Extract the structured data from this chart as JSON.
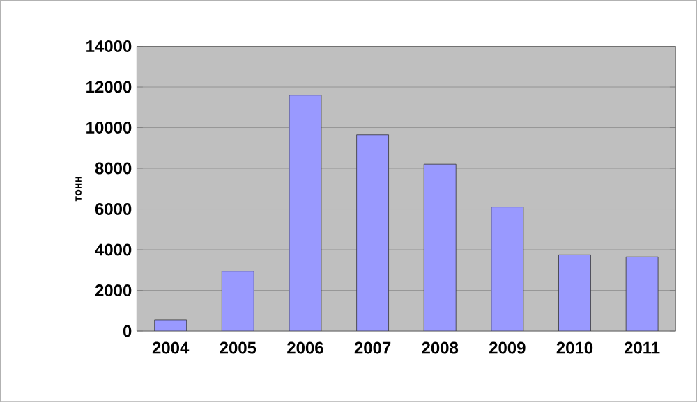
{
  "chart_data": {
    "type": "bar",
    "ylabel": "тонн",
    "categories": [
      "2004",
      "2005",
      "2006",
      "2007",
      "2008",
      "2009",
      "2010",
      "2011"
    ],
    "values": [
      550,
      2950,
      11600,
      9650,
      8200,
      6100,
      3750,
      3650
    ],
    "color": "#9999ff",
    "ylim": [
      0,
      14000
    ],
    "yticks": [
      0,
      2000,
      4000,
      6000,
      8000,
      10000,
      12000,
      14000
    ],
    "grid": "y"
  }
}
